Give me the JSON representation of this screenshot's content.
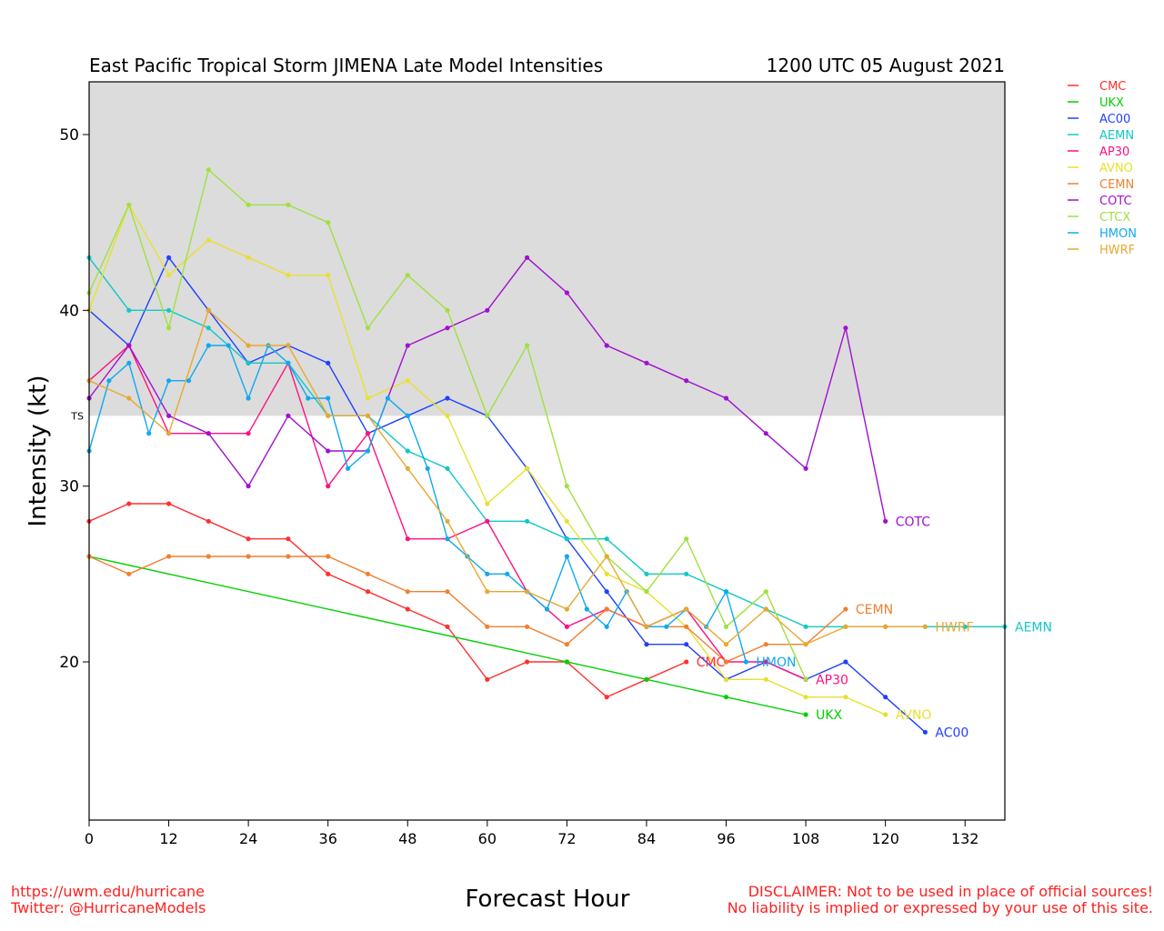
{
  "header": {
    "title": "East Pacific Tropical Storm JIMENA Late Model Intensities",
    "datetime": "1200 UTC 05 August 2021"
  },
  "footer": {
    "url": "https://uwm.edu/hurricane",
    "twitter": "Twitter: @HurricaneModels",
    "disclaimer_1": "DISCLAIMER: Not to be used in place of official sources!",
    "disclaimer_2": "No liability is implied or expressed by your use of this site."
  },
  "chart_data": {
    "type": "line",
    "title": "East Pacific Tropical Storm JIMENA Late Model Intensities",
    "subtitle": "1200 UTC 05 August 2021",
    "xlabel": "Forecast Hour",
    "ylabel": "Intensity (kt)",
    "xlim": [
      0,
      138
    ],
    "ylim": [
      11,
      53
    ],
    "xticks": [
      0,
      12,
      24,
      36,
      48,
      60,
      72,
      84,
      96,
      108,
      120,
      132
    ],
    "yticks": [
      20,
      30,
      40,
      50
    ],
    "ts_threshold": 34,
    "ts_label": "TS",
    "shading_color": "#dcdcdc",
    "legend_position": "top-right outside",
    "series": [
      {
        "name": "CMC",
        "color": "#ff3030",
        "x": [
          0,
          6,
          12,
          18,
          24,
          30,
          36,
          42,
          48,
          54,
          60,
          66,
          72,
          78,
          84,
          90
        ],
        "y": [
          28,
          29,
          29,
          28,
          27,
          27,
          25,
          24,
          23,
          22,
          19,
          20,
          20,
          18,
          19,
          20
        ],
        "end_label": "CMC"
      },
      {
        "name": "UKX",
        "color": "#00d000",
        "x": [
          0,
          72,
          84,
          96,
          108
        ],
        "y": [
          26,
          20,
          19,
          18,
          17
        ],
        "end_label": "UKX"
      },
      {
        "name": "AC00",
        "color": "#2040ff",
        "x": [
          0,
          6,
          12,
          18,
          24,
          30,
          36,
          42,
          48,
          54,
          60,
          66,
          72,
          78,
          84,
          90,
          96,
          102,
          108,
          114,
          120,
          126
        ],
        "y": [
          40,
          38,
          43,
          40,
          37,
          38,
          37,
          33,
          34,
          35,
          34,
          31,
          27,
          24,
          21,
          21,
          19,
          20,
          19,
          20,
          18,
          16
        ],
        "end_label": "AC00"
      },
      {
        "name": "AEMN",
        "color": "#10c8c8",
        "x": [
          0,
          6,
          12,
          18,
          24,
          30,
          36,
          42,
          48,
          54,
          60,
          66,
          72,
          78,
          84,
          90,
          96,
          102,
          108,
          114,
          120,
          126,
          132,
          138
        ],
        "y": [
          43,
          40,
          40,
          39,
          37,
          37,
          34,
          34,
          32,
          31,
          28,
          28,
          27,
          27,
          25,
          25,
          24,
          23,
          22,
          22,
          22,
          22,
          22,
          22
        ],
        "end_label": "AEMN"
      },
      {
        "name": "AP30",
        "color": "#ff1080",
        "x": [
          0,
          6,
          12,
          18,
          24,
          30,
          36,
          42,
          48,
          54,
          60,
          66,
          72,
          78,
          84,
          90,
          96,
          102,
          108
        ],
        "y": [
          36,
          38,
          33,
          33,
          33,
          37,
          30,
          33,
          27,
          27,
          28,
          24,
          22,
          23,
          22,
          23,
          20,
          20,
          19
        ],
        "end_label": "AP30"
      },
      {
        "name": "AVNO",
        "color": "#e8e030",
        "x": [
          0,
          6,
          12,
          18,
          24,
          30,
          36,
          42,
          48,
          54,
          60,
          66,
          72,
          78,
          84,
          90,
          96,
          102,
          108,
          114,
          120
        ],
        "y": [
          40,
          46,
          42,
          44,
          43,
          42,
          42,
          35,
          36,
          34,
          29,
          31,
          28,
          25,
          24,
          22,
          19,
          19,
          18,
          18,
          17
        ],
        "end_label": "AVNO"
      },
      {
        "name": "CEMN",
        "color": "#f08030",
        "x": [
          0,
          6,
          12,
          18,
          24,
          30,
          36,
          42,
          48,
          54,
          60,
          66,
          72,
          78,
          84,
          90,
          96,
          102,
          108,
          114
        ],
        "y": [
          26,
          25,
          26,
          26,
          26,
          26,
          26,
          25,
          24,
          24,
          22,
          22,
          21,
          23,
          22,
          22,
          20,
          21,
          21,
          23
        ],
        "end_label": "CEMN"
      },
      {
        "name": "COTC",
        "color": "#a010d0",
        "x": [
          0,
          6,
          12,
          18,
          24,
          30,
          36,
          42,
          48,
          54,
          60,
          66,
          72,
          78,
          84,
          90,
          96,
          102,
          108,
          114,
          120
        ],
        "y": [
          35,
          38,
          34,
          33,
          30,
          34,
          32,
          32,
          38,
          39,
          40,
          43,
          41,
          38,
          37,
          36,
          35,
          33,
          31,
          39,
          28
        ],
        "end_label": "COTC"
      },
      {
        "name": "CTCX",
        "color": "#a0e040",
        "x": [
          0,
          6,
          12,
          18,
          24,
          30,
          36,
          42,
          48,
          54,
          60,
          66,
          72,
          78,
          84,
          90,
          96,
          102,
          108
        ],
        "y": [
          41,
          46,
          39,
          48,
          46,
          46,
          45,
          39,
          42,
          40,
          34,
          38,
          30,
          26,
          24,
          27,
          22,
          24,
          19
        ],
        "end_label": ""
      },
      {
        "name": "HMON",
        "color": "#10a8f0",
        "x": [
          0,
          3,
          6,
          9,
          12,
          15,
          18,
          21,
          24,
          27,
          30,
          33,
          36,
          39,
          42,
          45,
          48,
          51,
          54,
          57,
          60,
          63,
          66,
          69,
          72,
          75,
          78,
          81,
          84,
          87,
          90,
          93,
          96,
          99
        ],
        "y": [
          32,
          36,
          37,
          33,
          36,
          36,
          38,
          38,
          35,
          38,
          37,
          35,
          35,
          31,
          32,
          35,
          34,
          31,
          27,
          26,
          25,
          25,
          24,
          23,
          26,
          23,
          22,
          24,
          22,
          22,
          23,
          22,
          24,
          20
        ],
        "end_label": "HMON"
      },
      {
        "name": "HWRF",
        "color": "#e8a830",
        "x": [
          0,
          6,
          12,
          18,
          24,
          30,
          36,
          42,
          48,
          54,
          60,
          66,
          72,
          78,
          84,
          90,
          96,
          102,
          108,
          114,
          120,
          126
        ],
        "y": [
          36,
          35,
          33,
          40,
          38,
          38,
          34,
          34,
          31,
          28,
          24,
          24,
          23,
          26,
          22,
          23,
          21,
          23,
          21,
          22,
          22,
          22
        ],
        "end_label": "HWRF"
      }
    ]
  }
}
